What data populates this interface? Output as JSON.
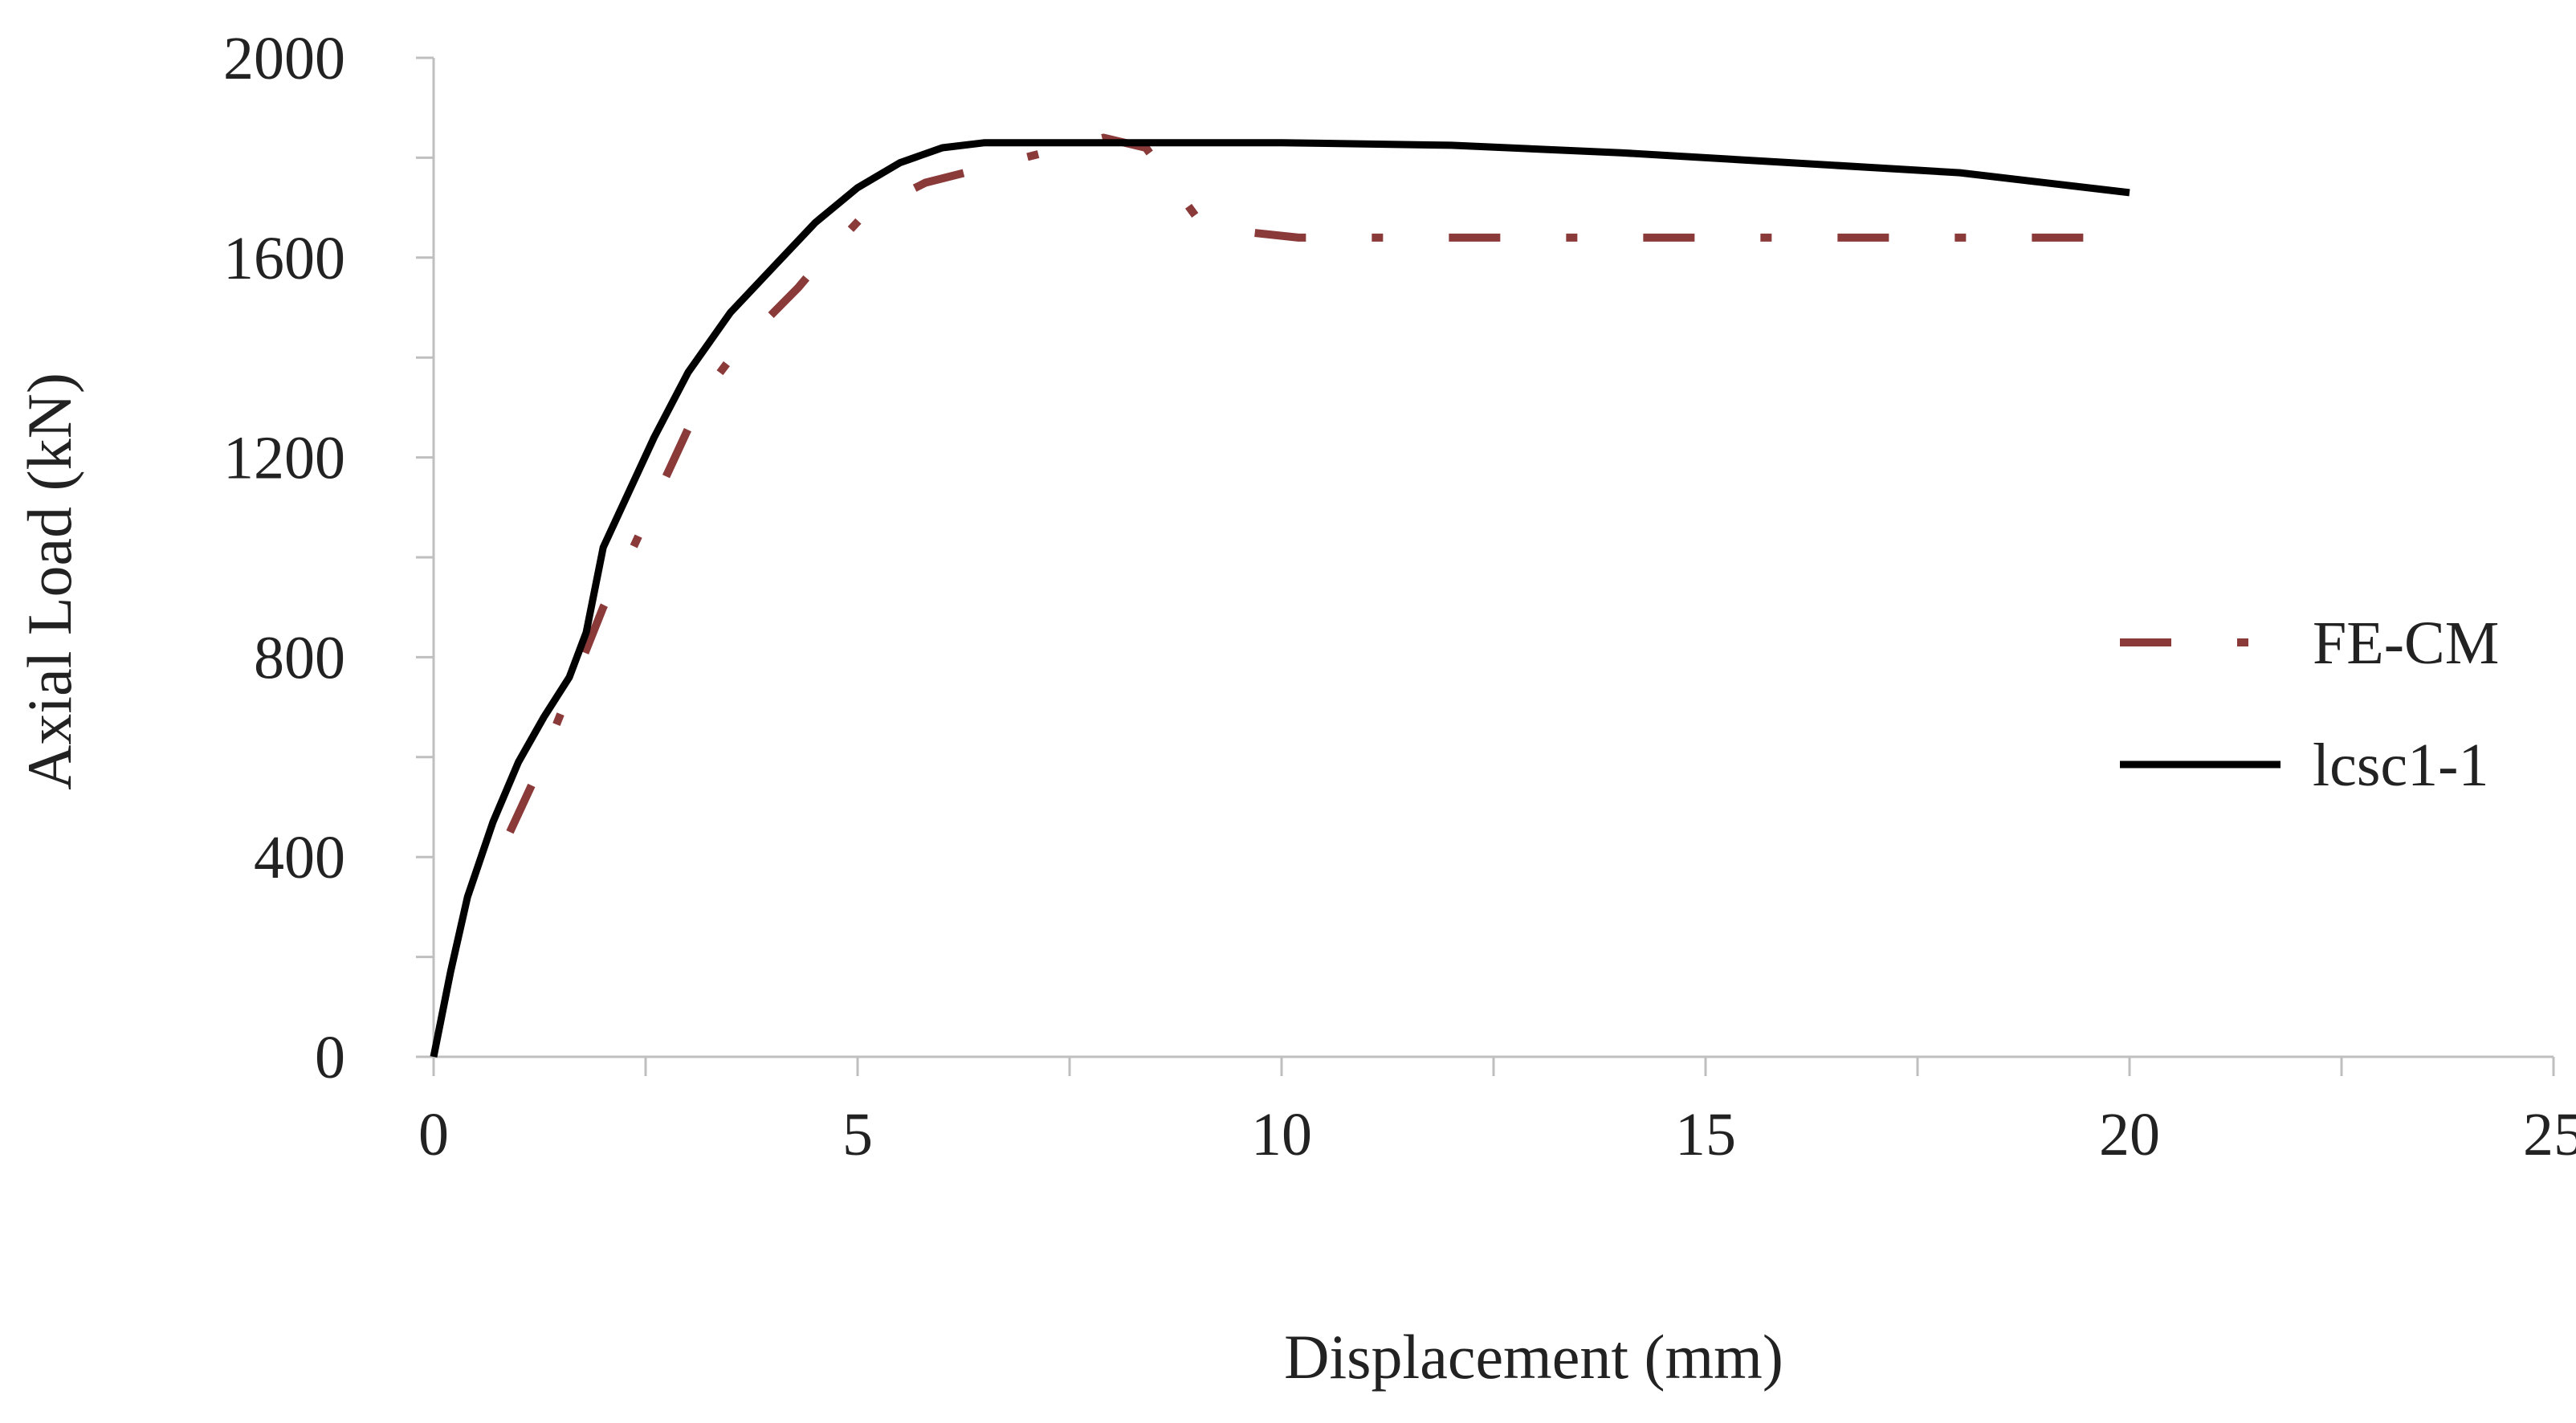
{
  "chart_data": {
    "type": "line",
    "title": "",
    "xlabel": "Displacement (mm)",
    "ylabel": "Axial Load (kN)",
    "xlim": [
      0,
      25
    ],
    "ylim": [
      0,
      2000
    ],
    "x_ticks": [
      0,
      5,
      10,
      15,
      20,
      25
    ],
    "y_ticks": [
      0,
      400,
      800,
      1200,
      1600,
      2000
    ],
    "x_tick_labels": [
      "0",
      "5",
      "10",
      "15",
      "20",
      "25"
    ],
    "y_tick_labels": [
      "0",
      "400",
      "800",
      "1200",
      "1600",
      "2000"
    ],
    "grid": false,
    "legend_position": "right",
    "series": [
      {
        "name": "FE-CM",
        "color": "#8b3a3a",
        "line_style": "dash-dot",
        "x": [
          0.9,
          1.2,
          2.0,
          2.3,
          3.2,
          3.6,
          4.3,
          4.5,
          5.1,
          5.8,
          7.9,
          8.4,
          9.0,
          9.1,
          10.2,
          10.8,
          11.8,
          12.0,
          13.2,
          13.8,
          14.7,
          14.9,
          16.0,
          16.6,
          17.6,
          17.8,
          18.9,
          19.5
        ],
        "y": [
          450,
          560,
          900,
          1000,
          1330,
          1420,
          1540,
          1580,
          1690,
          1750,
          1840,
          1820,
          1680,
          1660,
          1640,
          1640,
          1640,
          1640,
          1640,
          1640,
          1640,
          1640,
          1640,
          1640,
          1640,
          1640,
          1640,
          1640
        ]
      },
      {
        "name": "lcsc1-1",
        "color": "#000000",
        "line_style": "solid",
        "x": [
          0,
          0.2,
          0.4,
          0.7,
          1.0,
          1.3,
          1.6,
          1.8,
          2.0,
          2.3,
          2.6,
          3.0,
          3.5,
          4.0,
          4.5,
          5.0,
          5.5,
          6.0,
          6.5,
          8.0,
          10.0,
          12.0,
          14.0,
          16.0,
          18.0,
          20.0
        ],
        "y": [
          0,
          170,
          320,
          470,
          590,
          680,
          760,
          850,
          1020,
          1130,
          1240,
          1370,
          1490,
          1580,
          1670,
          1740,
          1790,
          1820,
          1830,
          1830,
          1830,
          1825,
          1810,
          1790,
          1770,
          1730
        ]
      }
    ]
  }
}
